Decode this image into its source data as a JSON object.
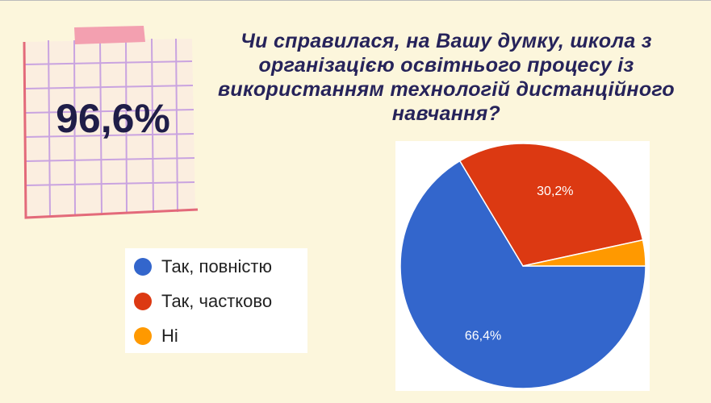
{
  "chart_data": {
    "type": "pie",
    "title": "Чи справилася, на Вашу думку, школа з організацією освітнього процесу із використанням технологій дистанційного навчання?",
    "highlight": "96,6%",
    "categories": [
      "Так, повністю",
      "Так, частково",
      "Ні"
    ],
    "values": [
      66.4,
      30.2,
      3.4
    ],
    "value_labels": [
      "66,4%",
      "30,2%",
      null
    ],
    "colors": [
      "#3366cc",
      "#dc3912",
      "#ff9900"
    ],
    "legend": "left"
  }
}
